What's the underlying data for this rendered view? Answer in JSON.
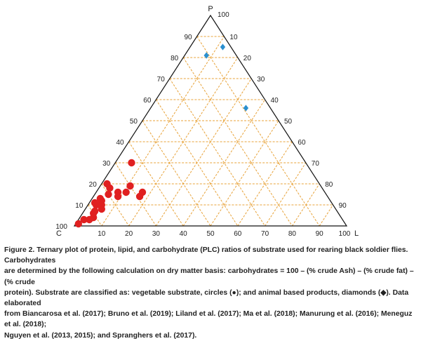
{
  "chart_data": {
    "type": "scatter",
    "subtype": "ternary",
    "axes": {
      "top_label": "P",
      "left_label": "C",
      "right_label": "L",
      "ticks": [
        0,
        10,
        20,
        30,
        40,
        50,
        60,
        70,
        80,
        90,
        100
      ],
      "range": [
        0,
        100
      ]
    },
    "grid": true,
    "grid_style": "dashed",
    "series": [
      {
        "name": "vegetable substrate",
        "marker": "circle",
        "color": "#e02020",
        "points": [
          {
            "P": 30,
            "L": 6,
            "C": 64
          },
          {
            "P": 19,
            "L": 11,
            "C": 70
          },
          {
            "P": 16,
            "L": 17,
            "C": 67
          },
          {
            "P": 16,
            "L": 11,
            "C": 73
          },
          {
            "P": 16,
            "L": 8,
            "C": 76
          },
          {
            "P": 14,
            "L": 17,
            "C": 69
          },
          {
            "P": 15,
            "L": 5,
            "C": 80
          },
          {
            "P": 14,
            "L": 9,
            "C": 77
          },
          {
            "P": 12,
            "L": 4,
            "C": 84
          },
          {
            "P": 10,
            "L": 5,
            "C": 85
          },
          {
            "P": 8,
            "L": 6,
            "C": 86
          },
          {
            "P": 7,
            "L": 4,
            "C": 89
          },
          {
            "P": 6,
            "L": 4,
            "C": 90
          },
          {
            "P": 4,
            "L": 5,
            "C": 91
          },
          {
            "P": 3,
            "L": 4,
            "C": 93
          },
          {
            "P": 3,
            "L": 2,
            "C": 95
          },
          {
            "P": 1,
            "L": 1,
            "C": 98
          },
          {
            "P": 18,
            "L": 4,
            "C": 78
          },
          {
            "P": 11,
            "L": 2,
            "C": 87
          },
          {
            "P": 20,
            "L": 2,
            "C": 78
          },
          {
            "P": 13,
            "L": 3,
            "C": 84
          },
          {
            "P": 10,
            "L": 3,
            "C": 87
          }
        ]
      },
      {
        "name": "animal based products",
        "marker": "diamond",
        "color": "#2a8fcf",
        "points": [
          {
            "P": 85,
            "L": 12,
            "C": 3
          },
          {
            "P": 81,
            "L": 8,
            "C": 11
          },
          {
            "P": 56,
            "L": 35,
            "C": 9
          }
        ]
      }
    ]
  },
  "caption": {
    "lines": [
      "Figure 2. Ternary plot of protein, lipid, and carbohydrate (PLC) ratios of substrate used for rearing black soldier flies. Carbohydrates",
      "are determined by the following calculation on dry matter basis: carbohydrates = 100 – (% crude Ash) – (% crude fat) – (% crude",
      "protein). Substrate are classified as: vegetable substrate, circles (●); and animal based products, diamonds (◆). Data elaborated",
      "from Biancarosa et al. (2017); Bruno et al. (2019); Liland et al. (2017); Ma et al. (2018); Manurung et al. (2016); Meneguz et al. (2018);",
      "Nguyen et al. (2013, 2015); and Spranghers et al. (2017)."
    ]
  },
  "colors": {
    "grid": "#e8a33a",
    "frame": "#111111",
    "circle": "#e02020",
    "diamond": "#2a8fcf"
  }
}
